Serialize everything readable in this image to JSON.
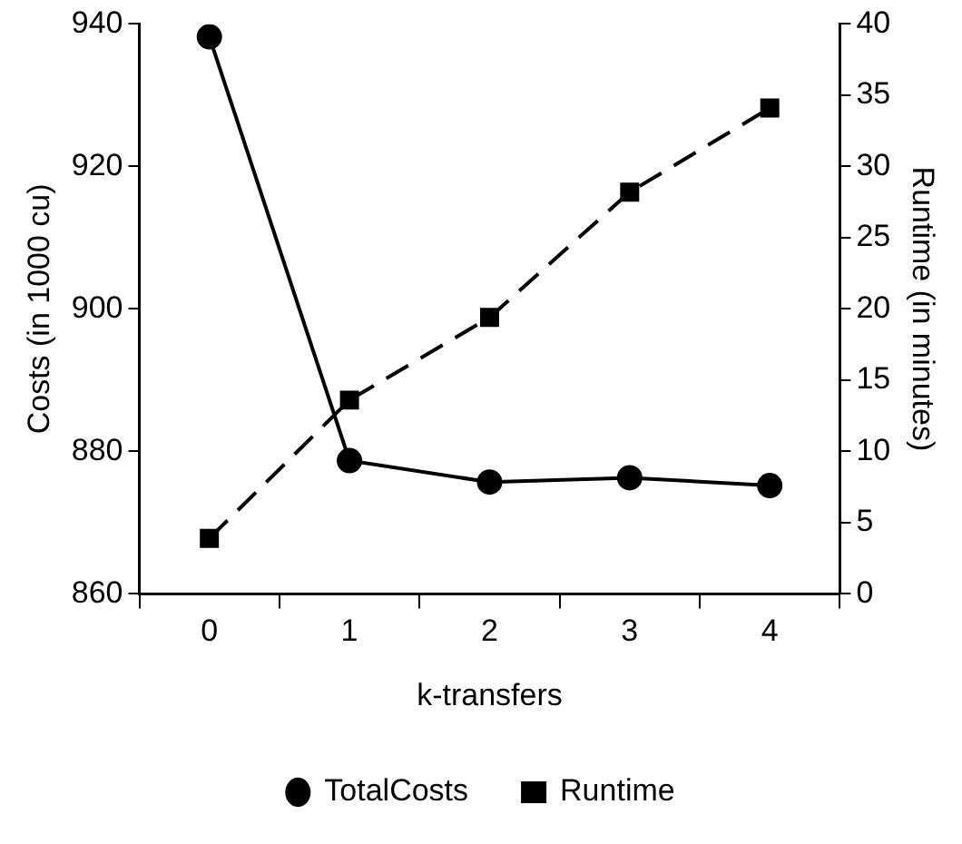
{
  "chart_data": {
    "type": "line",
    "xlabel": "k-transfers",
    "ylabel": "Costs (in 1000 cu)",
    "y2label": "Runtime (in minutes)",
    "categories": [
      "0",
      "1",
      "2",
      "3",
      "4"
    ],
    "series": [
      {
        "name": "TotalCosts",
        "color": "#000000",
        "values": [
          938.2,
          878.7,
          875.7,
          876.3,
          875.2
        ],
        "marker": "circle",
        "line_style": "solid"
      },
      {
        "name": "Runtime",
        "color": "#000000",
        "values": [
          3.9,
          13.6,
          19.4,
          28.2,
          34.1
        ],
        "axis": "y2",
        "marker": "square",
        "line_style": "dashed"
      }
    ],
    "ylim": [
      860,
      940
    ],
    "yticks": [
      860,
      880,
      900,
      920,
      940
    ],
    "y2lim": [
      0,
      40
    ],
    "y2ticks": [
      0,
      5,
      10,
      15,
      20,
      25,
      30,
      35,
      40
    ],
    "grid": false,
    "legend": "bottom"
  }
}
